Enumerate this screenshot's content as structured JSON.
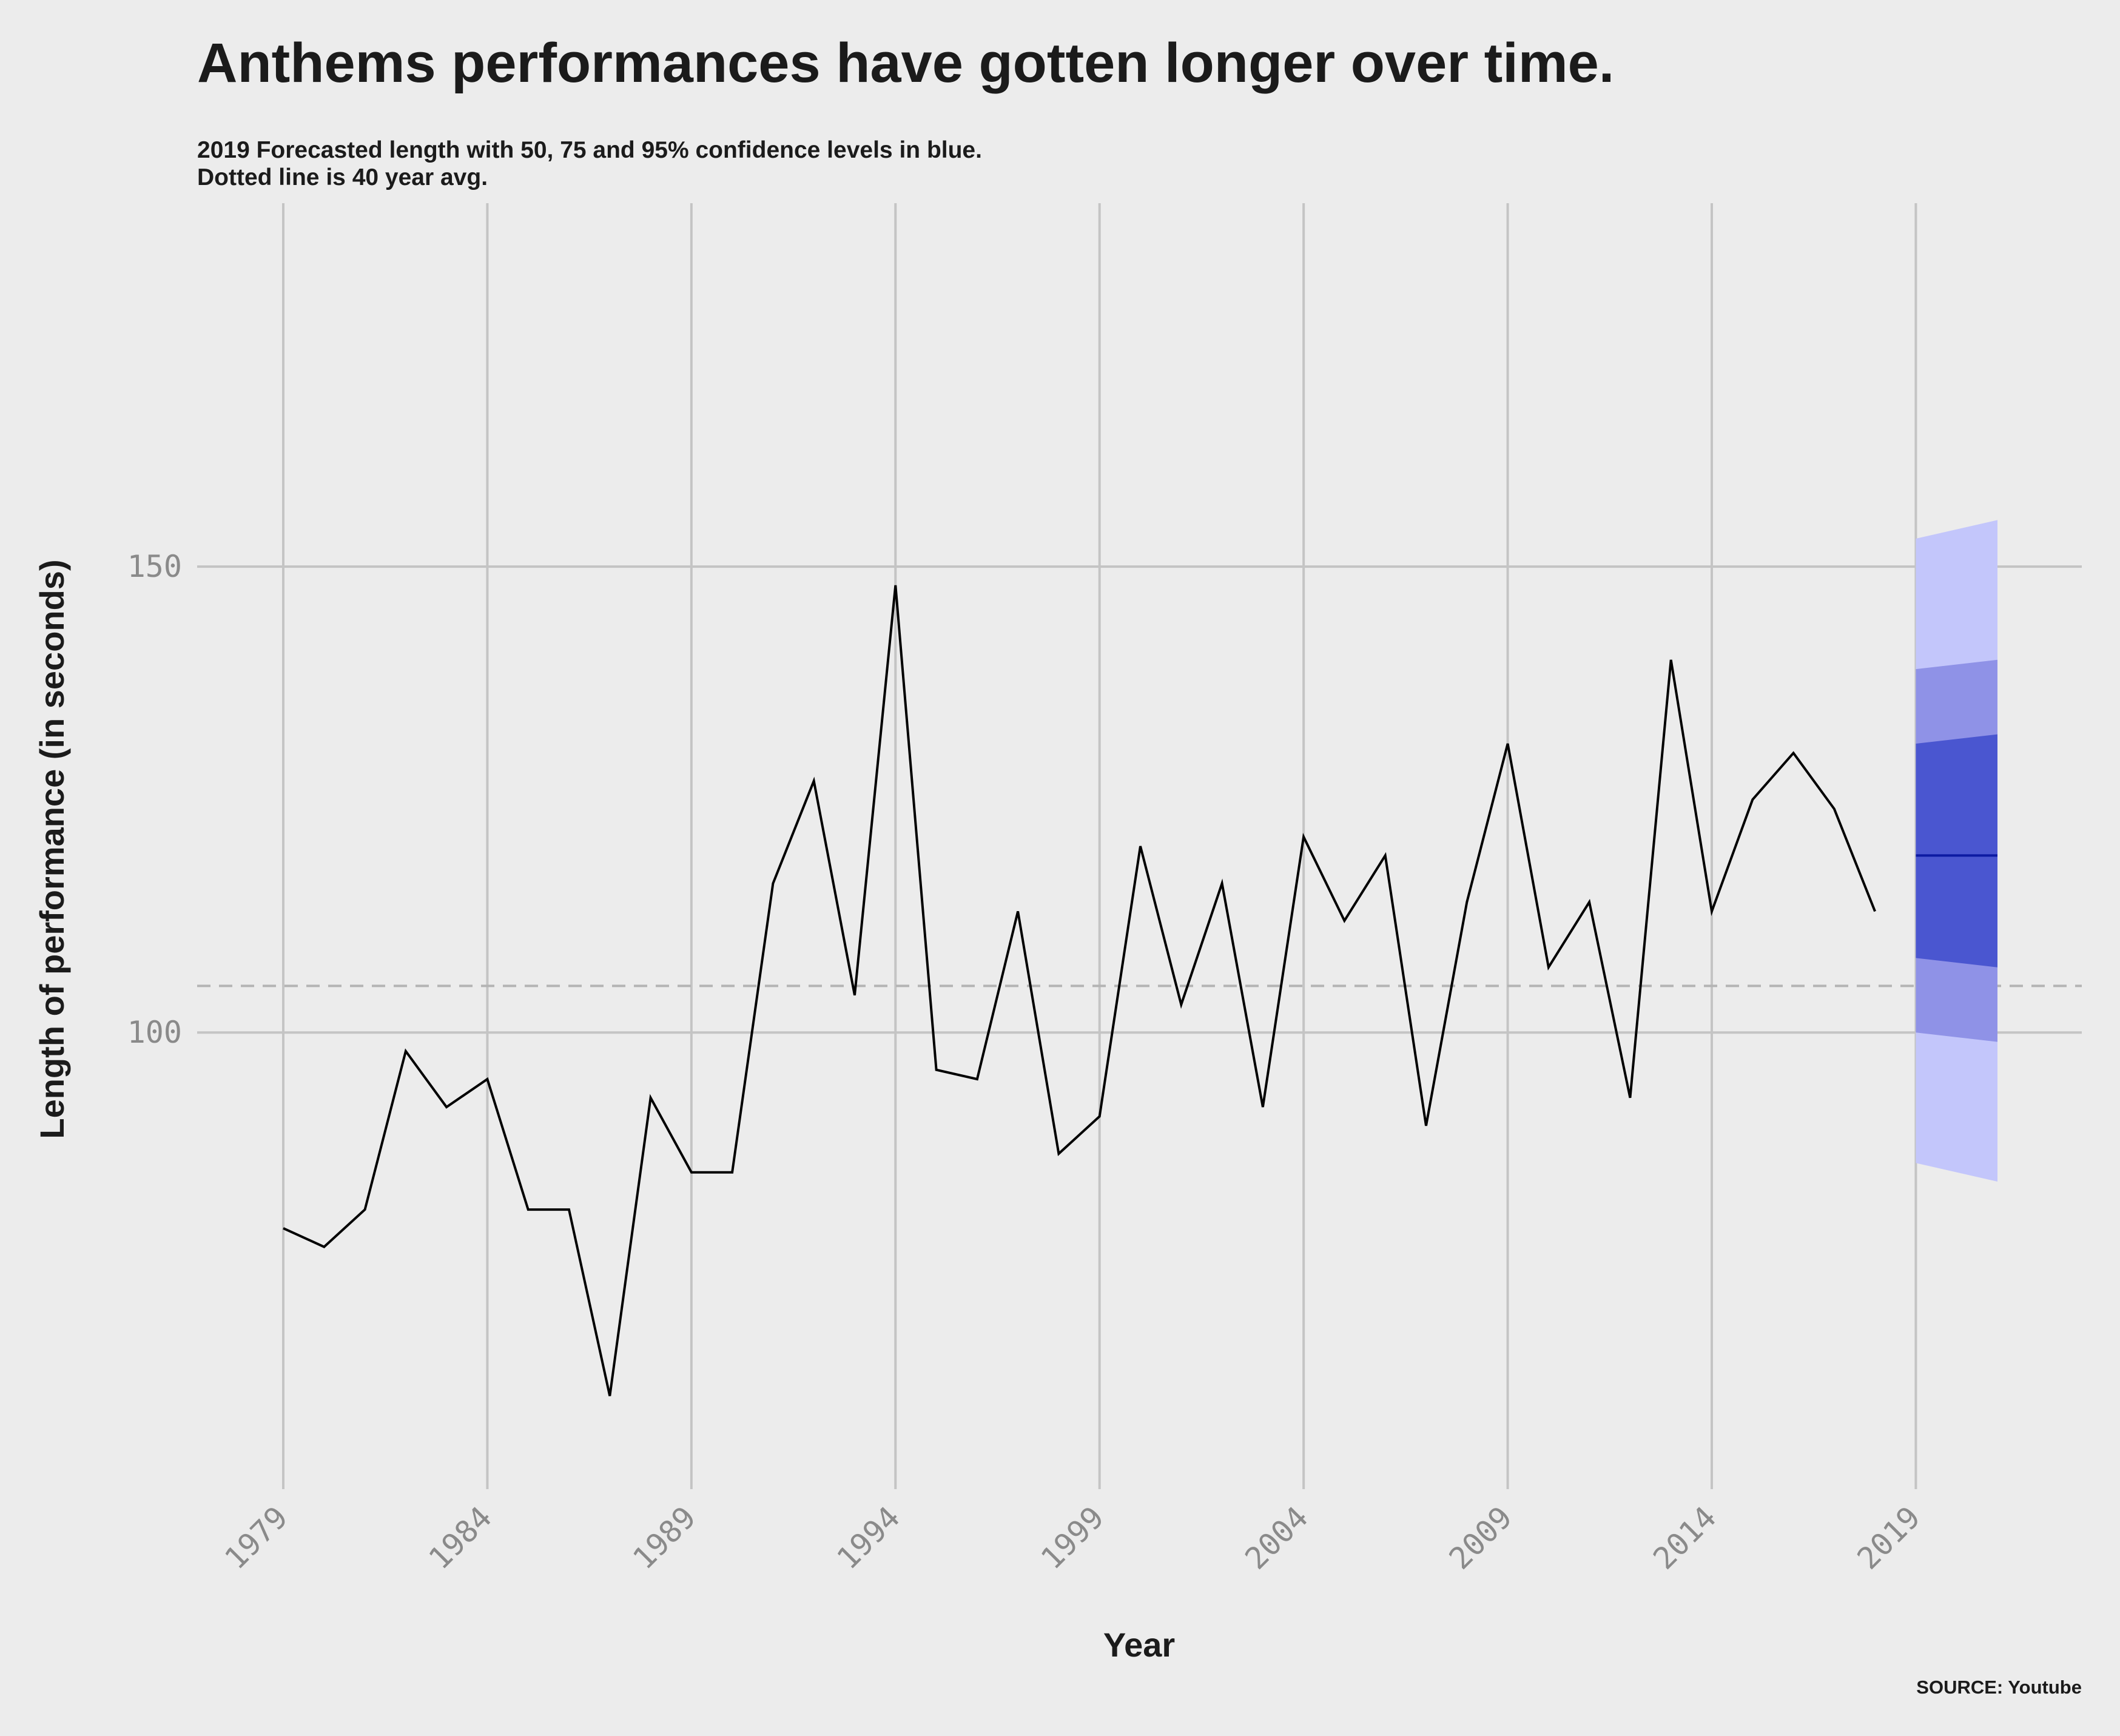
{
  "chart_data": {
    "type": "line",
    "title": "Anthems performances have gotten longer over time.",
    "subtitle_lines": [
      "2019 Forecasted length with 50, 75 and 95% confidence levels in blue.",
      "Dotted line is 40 year avg."
    ],
    "xlabel": "Year",
    "ylabel": "Length of performance (in seconds)",
    "source": "SOURCE: Youtube",
    "x_ticks": [
      1979,
      1984,
      1989,
      1994,
      1999,
      2004,
      2009,
      2014,
      2019
    ],
    "y_ticks": [
      100,
      150
    ],
    "xlim": [
      1979,
      2021
    ],
    "ylim": [
      51,
      189
    ],
    "grid": true,
    "series": [
      {
        "x": [
          1979,
          1980,
          1981,
          1982,
          1983,
          1984,
          1985,
          1986,
          1987,
          1988,
          1989,
          1990,
          1991,
          1992,
          1993,
          1994,
          1995,
          1996,
          1997,
          1998,
          1999,
          2000,
          2001,
          2002,
          2003,
          2004,
          2005,
          2006,
          2007,
          2008,
          2009,
          2010,
          2011,
          2012,
          2013,
          2014,
          2015,
          2016,
          2017,
          2018
        ],
        "values": [
          79,
          77,
          81,
          98,
          92,
          95,
          81,
          81,
          61,
          93,
          85,
          85,
          116,
          127,
          104,
          148,
          96,
          95,
          113,
          87,
          91,
          120,
          103,
          116,
          92,
          121,
          112,
          119,
          90,
          114,
          131,
          107,
          114,
          93,
          140,
          113,
          125,
          130,
          124,
          113
        ],
        "color": "#000000"
      }
    ],
    "average_line": {
      "value": 105,
      "style": "dashed",
      "color": "#b4b4b4"
    },
    "forecast": {
      "x_start": 2019,
      "x_end": 2021,
      "mean": 119,
      "mean_color": "#0c1aa3",
      "bands": [
        {
          "level": "95%",
          "lower": [
            86,
            84
          ],
          "upper": [
            153,
            155
          ],
          "color": "#c3c6fb"
        },
        {
          "level": "75%",
          "lower": [
            100,
            99
          ],
          "upper": [
            139,
            140
          ],
          "color": "#8f92e7"
        },
        {
          "level": "50%",
          "lower": [
            108,
            107
          ],
          "upper": [
            131,
            132
          ],
          "color": "#4a56d0"
        }
      ]
    }
  }
}
